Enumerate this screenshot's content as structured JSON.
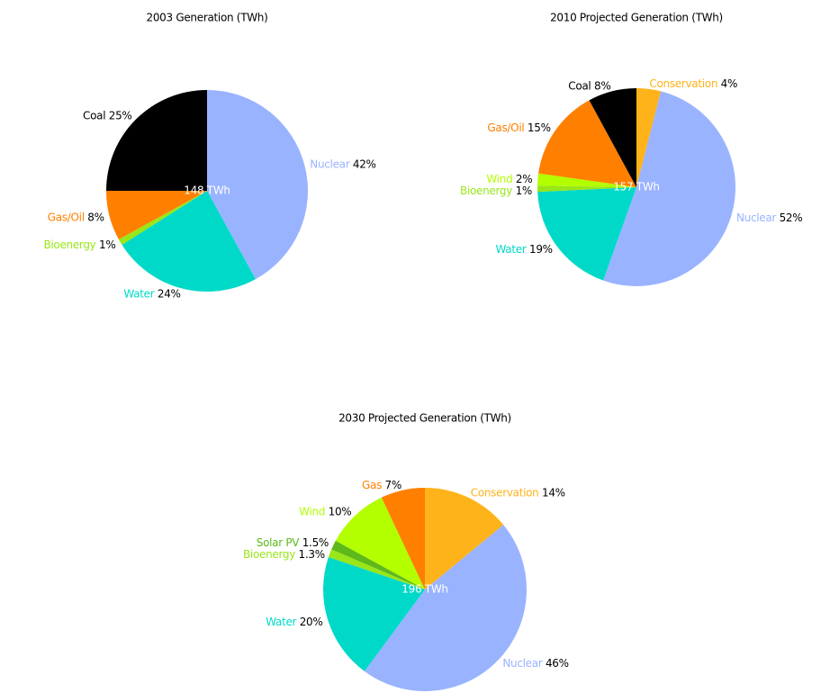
{
  "chart_data": [
    {
      "type": "pie",
      "title": "2003 Generation (TWh)",
      "center_label": "148 TWh",
      "categories": [
        "Nuclear",
        "Water",
        "Bioenergy",
        "Gas/Oil",
        "Coal"
      ],
      "values": [
        42,
        24,
        1,
        8,
        25
      ],
      "value_labels": [
        "42%",
        "24%",
        "1%",
        "8%",
        "25%"
      ],
      "colors": [
        "#99b3ff",
        "#00d9c8",
        "#99e619",
        "#ff7f00",
        "#000000"
      ]
    },
    {
      "type": "pie",
      "title": "2010 Projected Generation (TWh)",
      "center_label": "157 TWh",
      "categories": [
        "Conservation",
        "Nuclear",
        "Water",
        "Bioenergy",
        "Wind",
        "Gas/Oil",
        "Coal"
      ],
      "values": [
        4,
        52,
        19,
        1,
        2,
        15,
        8
      ],
      "value_labels": [
        "4%",
        "52%",
        "19%",
        "1%",
        "2%",
        "15%",
        "8%"
      ],
      "colors": [
        "#ffb31a",
        "#99b3ff",
        "#00d9c8",
        "#99e619",
        "#b3ff00",
        "#ff7f00",
        "#000000"
      ]
    },
    {
      "type": "pie",
      "title": "2030 Projected Generation (TWh)",
      "center_label": "196 TWh",
      "categories": [
        "Conservation",
        "Nuclear",
        "Water",
        "Bioenergy",
        "Solar PV",
        "Wind",
        "Gas"
      ],
      "values": [
        14,
        46,
        20,
        1.3,
        1.5,
        10,
        7
      ],
      "value_labels": [
        "14%",
        "46%",
        "20%",
        "1.3%",
        "1.5%",
        "10%",
        "7%"
      ],
      "colors": [
        "#ffb31a",
        "#99b3ff",
        "#00d9c8",
        "#99e619",
        "#5fb81a",
        "#b3ff00",
        "#ff7f00"
      ]
    }
  ]
}
